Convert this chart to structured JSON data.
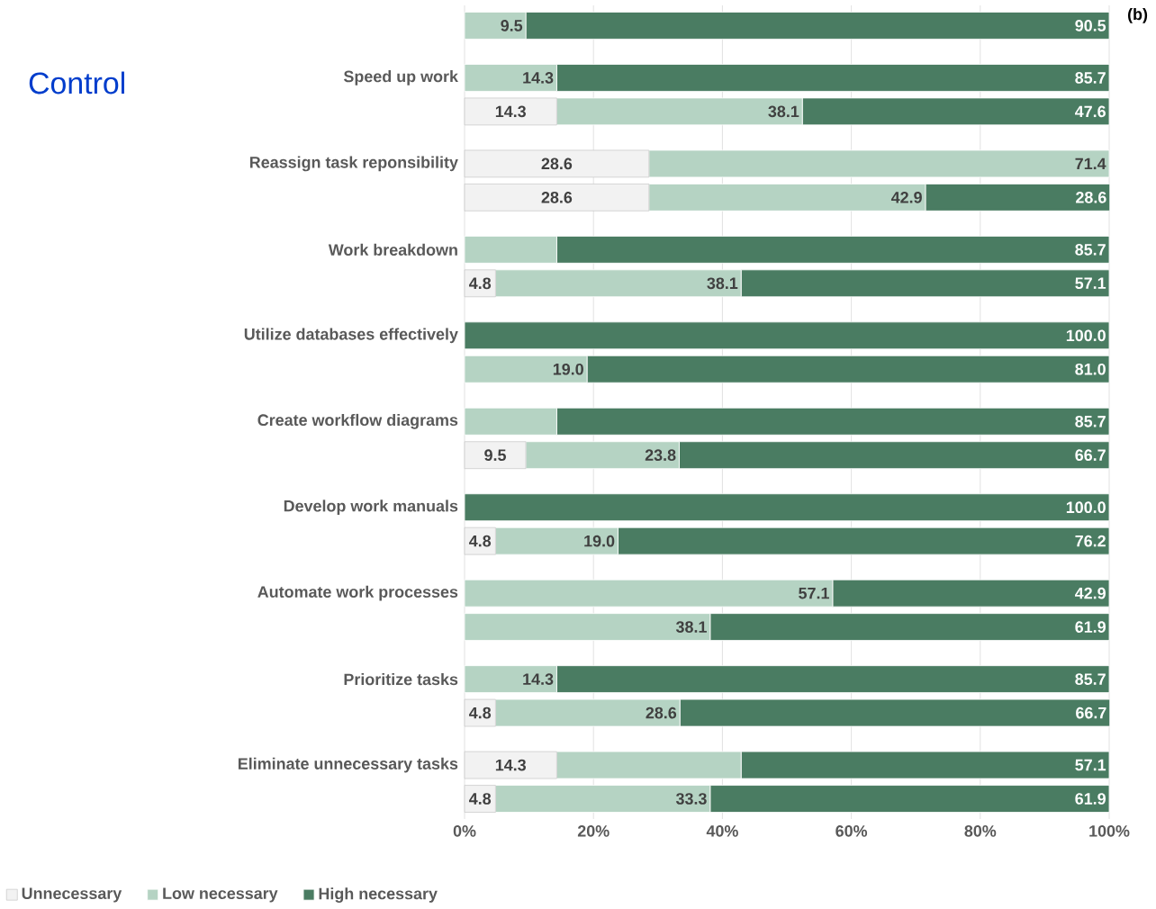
{
  "chart_data": {
    "type": "bar",
    "orientation": "horizontal",
    "stacked": true,
    "title": "Control",
    "annotations": [
      "(b)"
    ],
    "categories": [
      null,
      "Speed up work",
      null,
      "Reassign task reponsibility",
      null,
      "Work breakdown",
      null,
      "Utilize databases effectively",
      null,
      "Create workflow diagrams",
      null,
      "Develop work manuals",
      null,
      "Automate work processes",
      null,
      "Prioritize tasks",
      null,
      "Eliminate unnecessary tasks",
      null
    ],
    "series": [
      {
        "name": "Unnecessary",
        "color": "#f2f2f2",
        "values": [
          0,
          0,
          14.3,
          28.6,
          28.6,
          0,
          4.8,
          0,
          0,
          0,
          9.5,
          0,
          4.8,
          0,
          0,
          0,
          4.8,
          14.3,
          4.8
        ],
        "value_labels": [
          null,
          null,
          "14.3",
          "28.6",
          "28.6",
          null,
          "4.8",
          null,
          null,
          null,
          "9.5",
          null,
          "4.8",
          null,
          null,
          null,
          "4.8",
          "14.3",
          "4.8"
        ]
      },
      {
        "name": "Low necessary",
        "color": "#b5d3c3",
        "values": [
          9.5,
          14.3,
          38.1,
          71.4,
          42.9,
          14.3,
          38.1,
          0,
          19.0,
          14.3,
          23.8,
          0,
          19.0,
          57.1,
          38.1,
          14.3,
          28.6,
          28.6,
          33.3
        ],
        "value_labels": [
          "9.5",
          "14.3",
          "38.1",
          "71.4",
          "42.9",
          null,
          "38.1",
          null,
          "19.0",
          null,
          "23.8",
          null,
          "19.0",
          "57.1",
          "38.1",
          "14.3",
          "28.6",
          null,
          "33.3"
        ]
      },
      {
        "name": "High necessary",
        "color": "#4a7c62",
        "values": [
          90.5,
          85.7,
          47.6,
          0,
          28.6,
          85.7,
          57.1,
          100,
          81.0,
          85.7,
          66.7,
          100,
          76.2,
          42.9,
          61.9,
          85.7,
          66.7,
          57.1,
          61.9
        ],
        "value_labels": [
          "90.5",
          "85.7",
          "47.6",
          null,
          "28.6",
          "85.7",
          "57.1",
          "100.0",
          "81.0",
          "85.7",
          "66.7",
          "100.0",
          "76.2",
          "42.9",
          "61.9",
          "85.7",
          "66.7",
          "57.1",
          "61.9"
        ]
      }
    ],
    "xlim": [
      0,
      100
    ],
    "xticks": [
      {
        "value": 0,
        "label": "0%"
      },
      {
        "value": 20,
        "label": "20%"
      },
      {
        "value": 40,
        "label": "40%"
      },
      {
        "value": 60,
        "label": "60%"
      },
      {
        "value": 80,
        "label": "80%"
      },
      {
        "value": 100,
        "label": "100%"
      }
    ],
    "grid": "x",
    "legend": "bottom"
  }
}
